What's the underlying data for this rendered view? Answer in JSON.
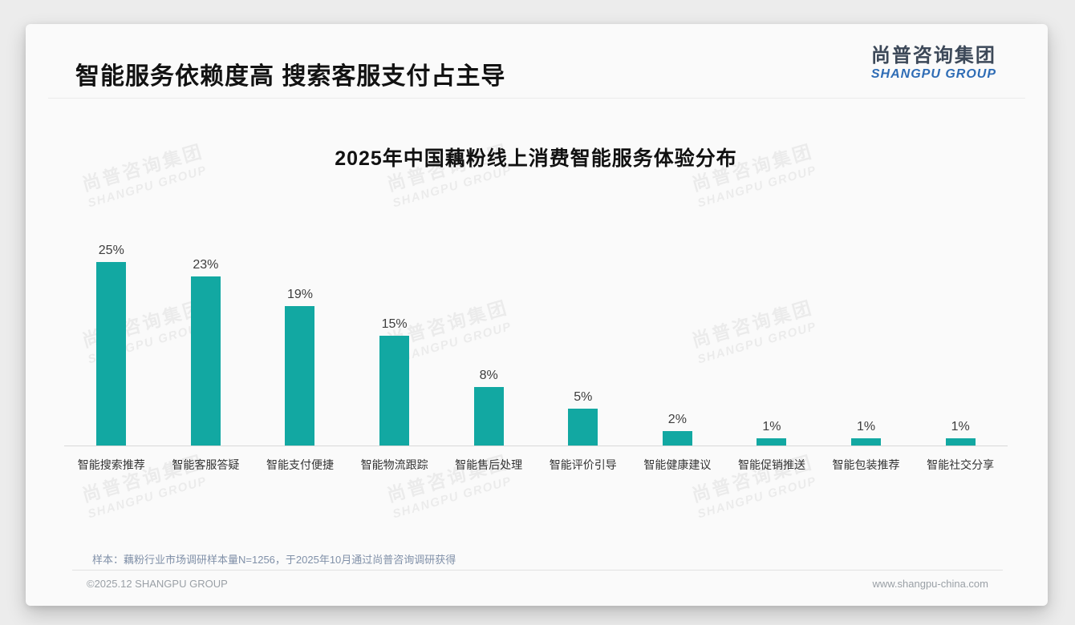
{
  "header": {
    "title": "智能服务依赖度高 搜索客服支付占主导",
    "logo": {
      "chinese": "尚普咨询集团",
      "english": "SHANGPU GROUP"
    }
  },
  "watermark": {
    "line1": "尚普咨询集团",
    "line2": "SHANGPU GROUP"
  },
  "chart_data": {
    "type": "bar",
    "title": "2025年中国藕粉线上消费智能服务体验分布",
    "categories": [
      "智能搜索推荐",
      "智能客服答疑",
      "智能支付便捷",
      "智能物流跟踪",
      "智能售后处理",
      "智能评价引导",
      "智能健康建议",
      "智能促销推送",
      "智能包装推荐",
      "智能社交分享"
    ],
    "values": [
      25,
      23,
      19,
      15,
      8,
      5,
      2,
      1,
      1,
      1
    ],
    "unit": "%",
    "xlabel": "",
    "ylabel": "",
    "ylim": [
      0,
      27
    ],
    "grid": false,
    "legend": false
  },
  "note": "样本：藕粉行业市场调研样本量N=1256，于2025年10月通过尚普咨询调研获得",
  "footer": {
    "left": "©2025.12 SHANGPU GROUP",
    "right": "www.shangpu-china.com"
  },
  "colors": {
    "bar": "#12A8A2",
    "logo_blue": "#2E6CB5",
    "logo_dark": "#3C4858",
    "note_text": "#8090A8",
    "footer_text": "#9aa0a6"
  }
}
